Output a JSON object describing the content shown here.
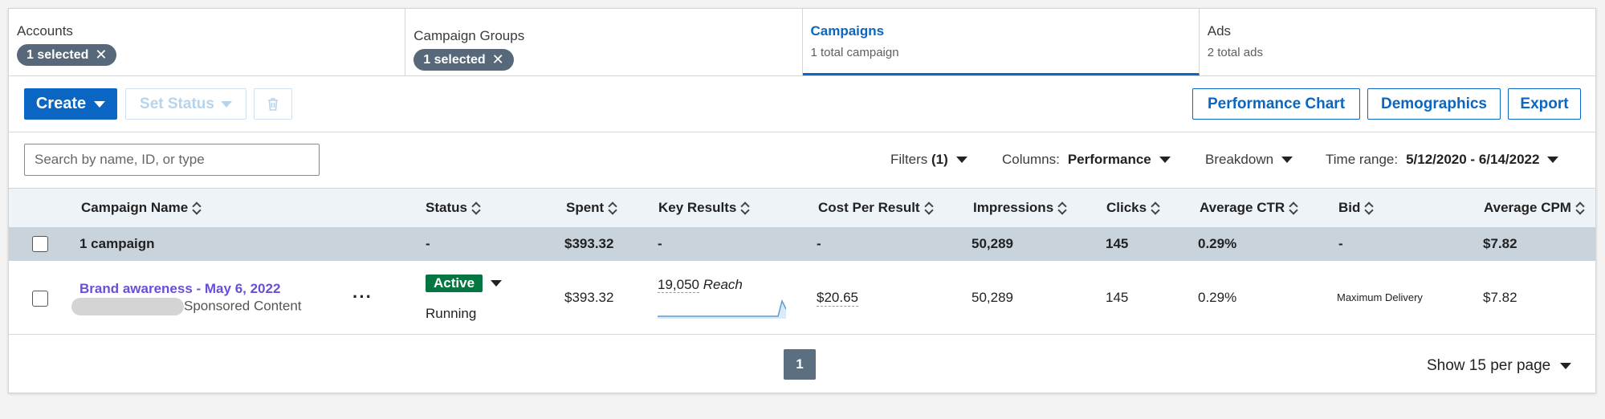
{
  "tabs": [
    {
      "title": "Accounts",
      "chip": "1 selected"
    },
    {
      "title": "Campaign Groups",
      "chip": "1 selected"
    },
    {
      "title": "Campaigns",
      "subtitle": "1 total campaign"
    },
    {
      "title": "Ads",
      "subtitle": "2 total ads"
    }
  ],
  "toolbar": {
    "create_label": "Create",
    "set_status_label": "Set Status",
    "performance_chart_label": "Performance Chart",
    "demographics_label": "Demographics",
    "export_label": "Export"
  },
  "filters": {
    "search_placeholder": "Search by name, ID, or type",
    "filters_label": "Filters",
    "filters_count": "(1)",
    "columns_label": "Columns:",
    "columns_value": "Performance",
    "breakdown_label": "Breakdown",
    "time_range_label": "Time range:",
    "time_range_value": "5/12/2020 - 6/14/2022"
  },
  "table": {
    "headers": [
      "Campaign Name",
      "Status",
      "Spent",
      "Key Results",
      "Cost Per Result",
      "Impressions",
      "Clicks",
      "Average CTR",
      "Bid",
      "Average CPM"
    ],
    "summary": {
      "name": "1 campaign",
      "status": "-",
      "spent": "$393.32",
      "key_results": "-",
      "cost_per_result": "-",
      "impressions": "50,289",
      "clicks": "145",
      "ctr": "0.29%",
      "bid": "-",
      "cpm": "$7.82"
    },
    "rows": [
      {
        "name": "Brand awareness - May 6, 2022",
        "type": "Sponsored Content",
        "status_badge": "Active",
        "status_text": "Running",
        "spent": "$393.32",
        "key_results_value": "19,050",
        "key_results_label": "Reach",
        "cost_per_result": "$20.65",
        "impressions": "50,289",
        "clicks": "145",
        "ctr": "0.29%",
        "bid": "Maximum Delivery",
        "cpm": "$7.82"
      }
    ]
  },
  "pagination": {
    "current_page": "1",
    "per_page_label": "Show 15 per page"
  },
  "colors": {
    "accent": "#0a66c2",
    "active": "#057642",
    "chip": "#56687a",
    "link": "#6a4fd6"
  }
}
